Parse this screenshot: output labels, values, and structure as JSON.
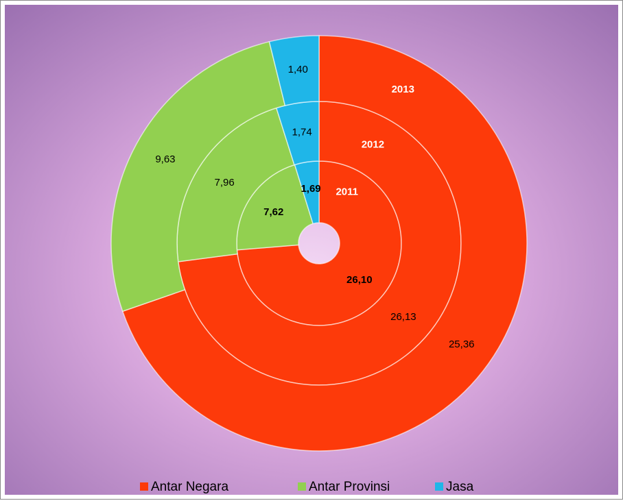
{
  "chart_data": {
    "type": "multi-ring-donut",
    "categories": [
      "Antar Negara",
      "Antar Provinsi",
      "Jasa"
    ],
    "colors": [
      "#fd3a0a",
      "#92d050",
      "#1fb6e8"
    ],
    "series": [
      {
        "name": "2011",
        "values": [
          26.1,
          7.62,
          1.69
        ],
        "value_labels": [
          "26,10",
          "7,62",
          "1,69"
        ]
      },
      {
        "name": "2012",
        "values": [
          26.13,
          7.96,
          1.74
        ],
        "value_labels": [
          "26,13",
          "7,96",
          "1,74"
        ]
      },
      {
        "name": "2013",
        "values": [
          25.36,
          9.63,
          1.4
        ],
        "value_labels": [
          "25,36",
          "9,63",
          "1,40"
        ]
      }
    ],
    "legend": "bottom"
  }
}
